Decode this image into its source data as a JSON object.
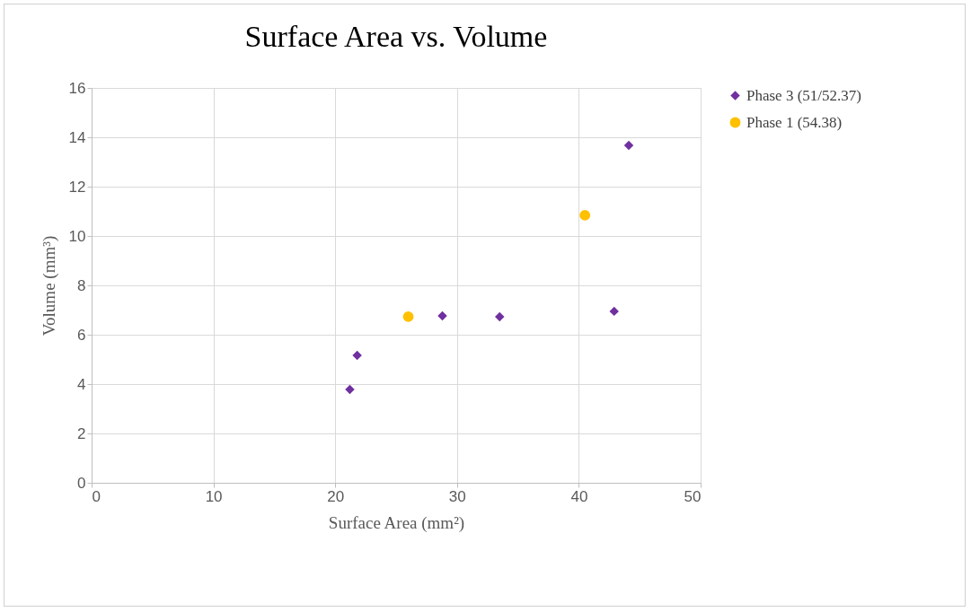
{
  "chart_data": {
    "type": "scatter",
    "title": "Surface Area vs. Volume",
    "xlabel": "Surface Area (mm²)",
    "ylabel": "Volume (mm³)",
    "xlim": [
      0,
      50
    ],
    "xticks": [
      0,
      10,
      20,
      30,
      40,
      50
    ],
    "ylim": [
      0,
      16
    ],
    "yticks": [
      0,
      2,
      4,
      6,
      8,
      10,
      12,
      14,
      16
    ],
    "grid": true,
    "legend": "right",
    "series": [
      {
        "name": "Phase 3 (51/52.37)",
        "color": "#7030a0",
        "marker": "diamond",
        "x": [
          21.2,
          21.8,
          28.8,
          33.5,
          42.9,
          44.1
        ],
        "values": [
          3.78,
          5.16,
          6.76,
          6.73,
          6.95,
          13.67
        ]
      },
      {
        "name": "Phase 1 (54.38)",
        "color": "#ffc000",
        "marker": "circle",
        "x": [
          26.0,
          40.5
        ],
        "values": [
          6.73,
          10.84
        ]
      }
    ]
  }
}
